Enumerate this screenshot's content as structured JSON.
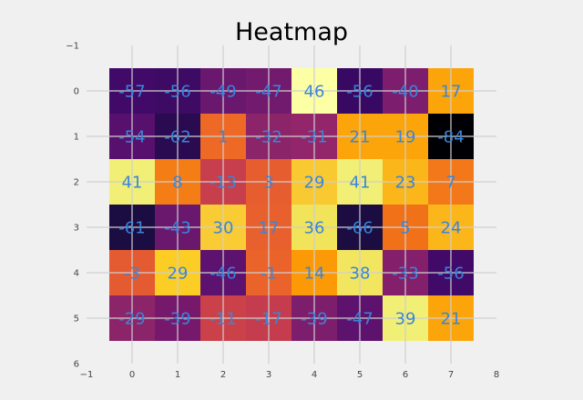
{
  "chart_data": {
    "type": "heatmap",
    "title": "Heatmap",
    "xlabel": "",
    "ylabel": "",
    "colormap": "inferno",
    "value_range": [
      -84,
      62
    ],
    "xlim": [
      -1,
      8
    ],
    "ylim": [
      6,
      -1
    ],
    "x_ticks": [
      "−1",
      "0",
      "1",
      "2",
      "3",
      "4",
      "5",
      "6",
      "7",
      "8"
    ],
    "y_ticks": [
      "−1",
      "0",
      "1",
      "2",
      "3",
      "4",
      "5",
      "6"
    ],
    "grid": true,
    "cell_label_color": "#3a86d8",
    "labels": [
      [
        "-57",
        "-56",
        "-49",
        "-47",
        "46",
        "-56",
        "-40",
        "17"
      ],
      [
        "-54",
        "-62",
        "1",
        "-32",
        "-31",
        "21",
        "19",
        "-84"
      ],
      [
        "41",
        "8",
        "-13",
        "3",
        "29",
        "41",
        "23",
        "7"
      ],
      [
        "-61",
        "-43",
        "30",
        "17",
        "36",
        "-66",
        "5",
        "24"
      ],
      [
        "-3",
        "29",
        "-46",
        "-1",
        "14",
        "38",
        "-33",
        "-56"
      ],
      [
        "-29",
        "-39",
        "-11",
        "-17",
        "-39",
        "-47",
        "39",
        "21"
      ]
    ],
    "cell_colors": [
      [
        "#420a68",
        "#3d0a64",
        "#6a176e",
        "#721a6e",
        "#fcffa4",
        "#380962",
        "#7c1d6d",
        "#fca50a"
      ],
      [
        "#57106e",
        "#2a0a50",
        "#ed6925",
        "#8c2469",
        "#93266a",
        "#fca50a",
        "#fca50a",
        "#000004"
      ],
      [
        "#f1ef75",
        "#f57d15",
        "#c73e4c",
        "#e65d30",
        "#f9c932",
        "#f1ef75",
        "#fbb61a",
        "#f37819"
      ],
      [
        "#1b0c41",
        "#6a176e",
        "#f9cb35",
        "#e8602d",
        "#f1e35a",
        "#1b0c41",
        "#f07118",
        "#fbb61a"
      ],
      [
        "#e45a31",
        "#fcce25",
        "#5c126e",
        "#ea632a",
        "#fb9906",
        "#f2e661",
        "#84206b",
        "#420a68"
      ],
      [
        "#8c2469",
        "#76196d",
        "#cb4149",
        "#c43c4e",
        "#7d1e6d",
        "#5d126e",
        "#f1ef75",
        "#fca50a"
      ]
    ]
  }
}
